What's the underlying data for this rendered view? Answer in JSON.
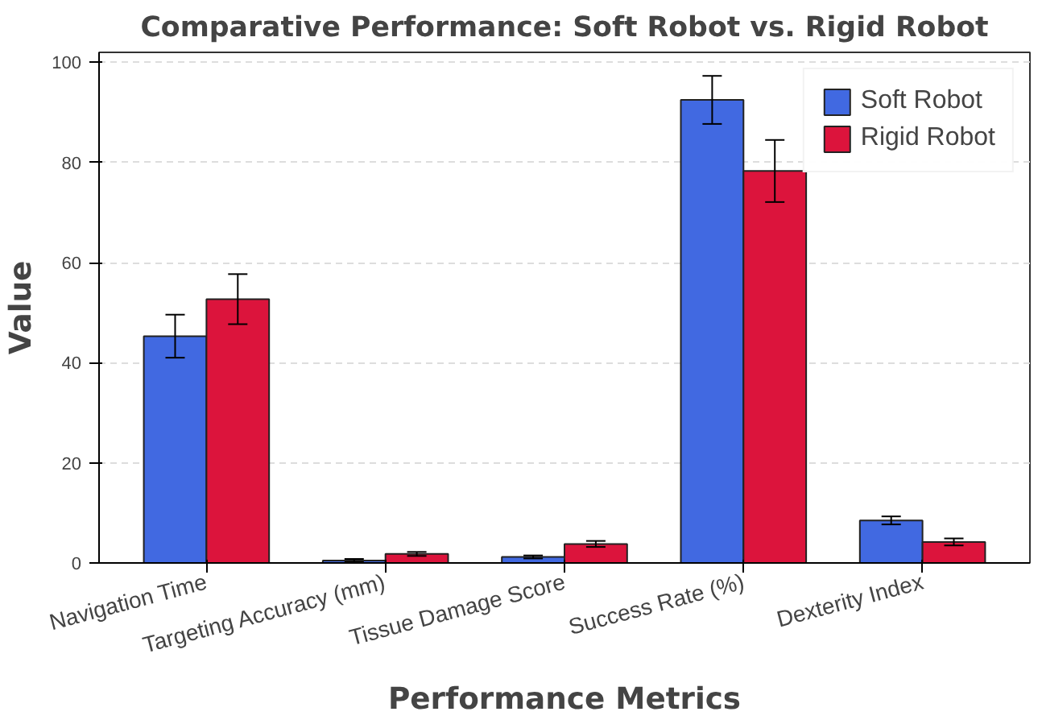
{
  "chart_data": {
    "type": "bar",
    "title": "Comparative Performance: Soft Robot vs. Rigid Robot",
    "xlabel": "Performance Metrics",
    "ylabel": "Value",
    "categories": [
      "Navigation Time",
      "Targeting Accuracy (mm)",
      "Tissue Damage Score",
      "Success Rate (%)",
      "Dexterity Index"
    ],
    "series": [
      {
        "name": "Soft Robot",
        "color": "#4169e1",
        "values": [
          45.3,
          0.5,
          1.2,
          92.5,
          8.5
        ],
        "errors": [
          4.3,
          0.3,
          0.3,
          4.8,
          0.8
        ]
      },
      {
        "name": "Rigid Robot",
        "color": "#dc143c",
        "values": [
          52.7,
          1.8,
          3.8,
          78.3,
          4.2
        ],
        "errors": [
          5,
          0.4,
          0.6,
          6.2,
          0.7
        ]
      }
    ],
    "ylim": [
      0,
      102
    ],
    "yticks": [
      0,
      20,
      40,
      60,
      80,
      100
    ],
    "grid": "y",
    "legend": "top right"
  }
}
